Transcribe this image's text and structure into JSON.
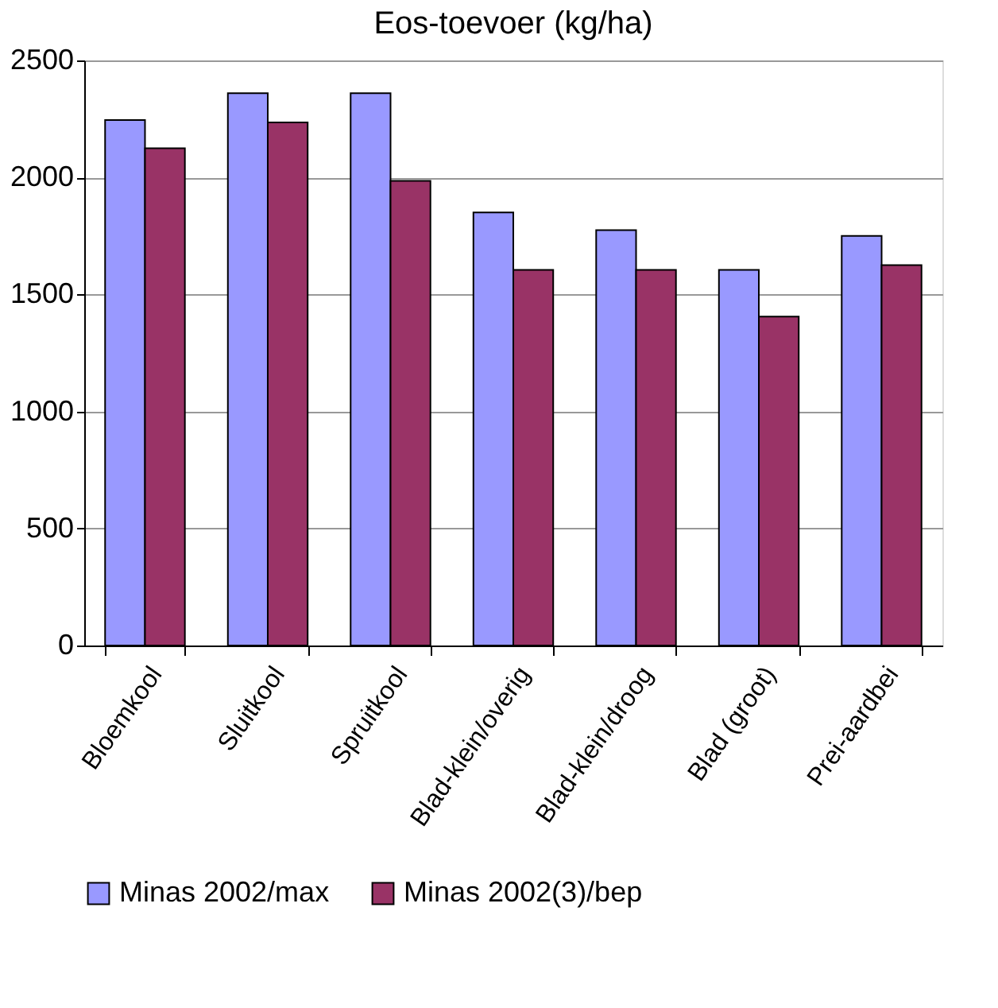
{
  "chart_data": {
    "type": "bar",
    "title": "Eos-toevoer (kg/ha)",
    "categories": [
      "Bloemkool",
      "Sluitkool",
      "Spruitkool",
      "Blad-klein/overig",
      "Blad-klein/droog",
      "Blad (groot)",
      "Prei-aardbei"
    ],
    "series": [
      {
        "name": "Minas 2002/max",
        "color": "#9999ff",
        "values": [
          2245,
          2360,
          2360,
          1850,
          1775,
          1605,
          1750
        ]
      },
      {
        "name": "Minas 2002(3)/bep",
        "color": "#993366",
        "values": [
          2125,
          2235,
          1985,
          1605,
          1605,
          1405,
          1625
        ]
      }
    ],
    "ylim": [
      0,
      2500
    ],
    "yticks": [
      0,
      500,
      1000,
      1500,
      2000,
      2500
    ],
    "grid": "y",
    "legend": "bottom"
  }
}
